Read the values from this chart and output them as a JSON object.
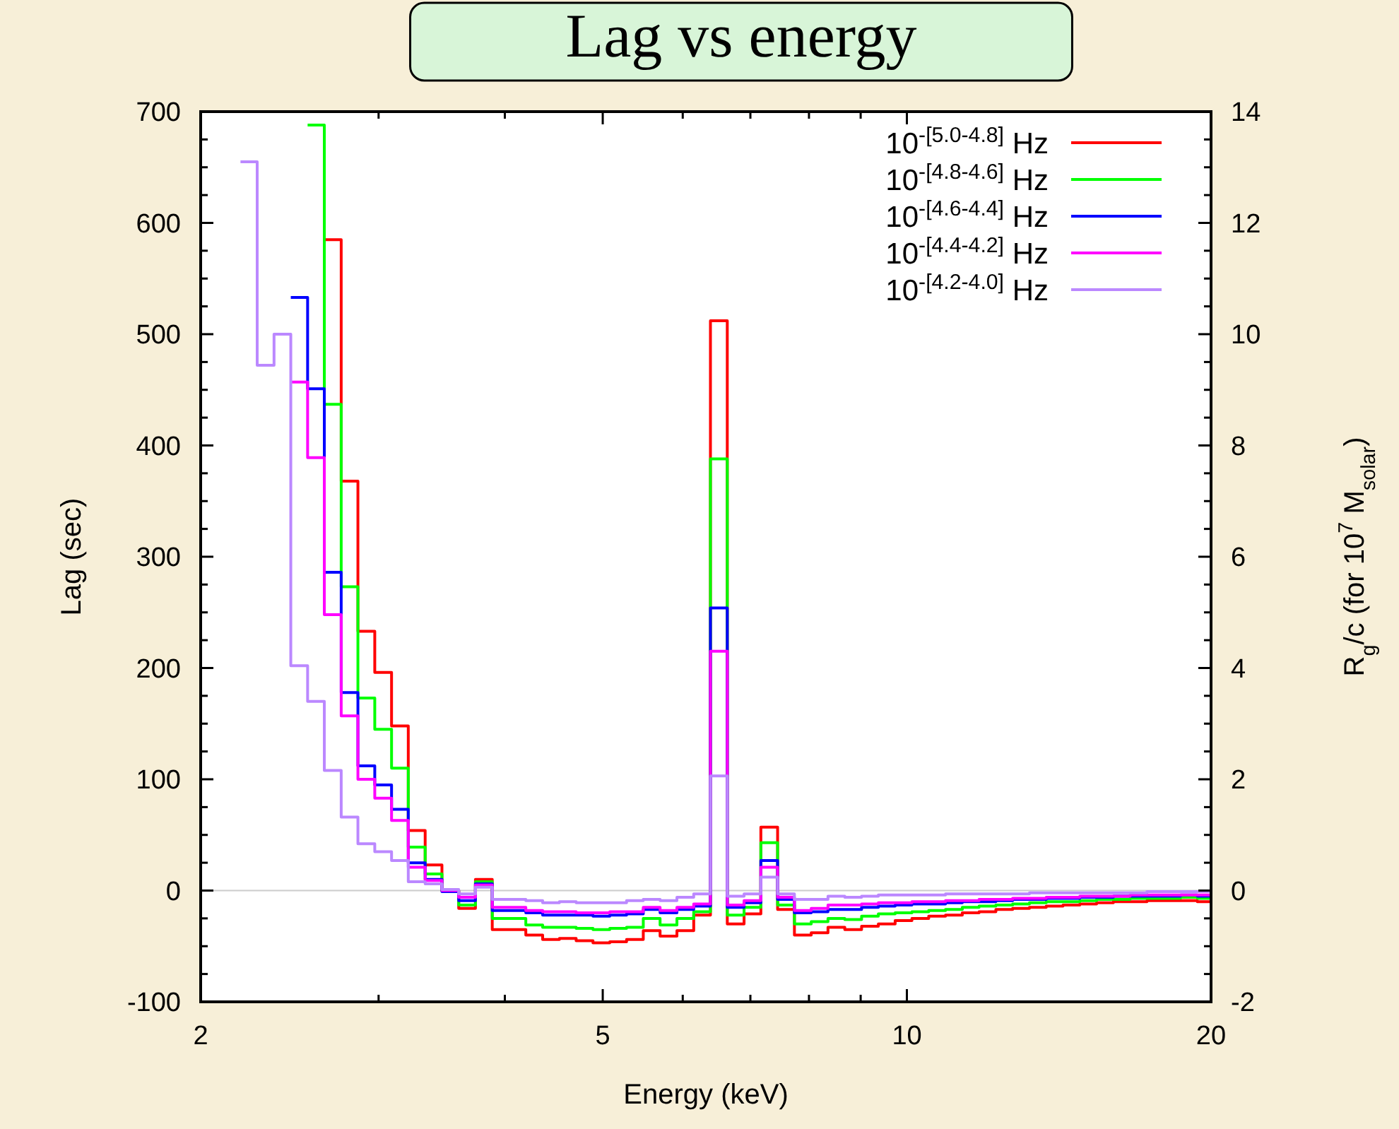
{
  "chart_data": {
    "type": "step",
    "title": "Lag vs energy",
    "xlabel": "Energy (keV)",
    "ylabel": "Lag (sec)",
    "y2label": "R$_{g}$/c (for 10$^{7}$ M$_{solar}$)",
    "log": "x",
    "legend": "top right",
    "xlim": [
      2,
      20
    ],
    "ylim": [
      -100,
      700
    ],
    "y2lim": [
      -2,
      14
    ],
    "xticks": [
      2,
      {
        "value": 3,
        "label": null
      },
      {
        "value": 4,
        "label": null
      },
      5,
      {
        "value": 6,
        "label": null
      },
      {
        "value": 7,
        "label": null
      },
      {
        "value": 8,
        "label": null
      },
      {
        "value": 9,
        "label": null
      },
      10,
      20
    ],
    "yticks": [
      -100,
      {
        "value": -75,
        "label": null
      },
      {
        "value": -50,
        "label": null
      },
      {
        "value": -25,
        "label": null
      },
      0,
      {
        "value": 25,
        "label": null
      },
      {
        "value": 50,
        "label": null
      },
      {
        "value": 75,
        "label": null
      },
      100,
      {
        "value": 125,
        "label": null
      },
      {
        "value": 150,
        "label": null
      },
      {
        "value": 175,
        "label": null
      },
      200,
      {
        "value": 225,
        "label": null
      },
      {
        "value": 250,
        "label": null
      },
      {
        "value": 275,
        "label": null
      },
      300,
      {
        "value": 325,
        "label": null
      },
      {
        "value": 350,
        "label": null
      },
      {
        "value": 375,
        "label": null
      },
      400,
      {
        "value": 425,
        "label": null
      },
      {
        "value": 450,
        "label": null
      },
      {
        "value": 475,
        "label": null
      },
      500,
      {
        "value": 525,
        "label": null
      },
      {
        "value": 550,
        "label": null
      },
      {
        "value": 575,
        "label": null
      },
      600,
      {
        "value": 625,
        "label": null
      },
      {
        "value": 650,
        "label": null
      },
      {
        "value": 675,
        "label": null
      },
      700
    ],
    "y2ticks": [
      -2,
      {
        "value": -1.5,
        "label": null
      },
      {
        "value": -1,
        "label": null
      },
      {
        "value": -0.5,
        "label": null
      },
      0,
      {
        "value": 0.5,
        "label": null
      },
      {
        "value": 1,
        "label": null
      },
      {
        "value": 1.5,
        "label": null
      },
      2,
      {
        "value": 2.5,
        "label": null
      },
      {
        "value": 3,
        "label": null
      },
      {
        "value": 3.5,
        "label": null
      },
      4,
      {
        "value": 4.5,
        "label": null
      },
      {
        "value": 5,
        "label": null
      },
      {
        "value": 5.5,
        "label": null
      },
      6,
      {
        "value": 6.5,
        "label": null
      },
      {
        "value": 7,
        "label": null
      },
      {
        "value": 7.5,
        "label": null
      },
      8,
      {
        "value": 8.5,
        "label": null
      },
      {
        "value": 9,
        "label": null
      },
      {
        "value": 9.5,
        "label": null
      },
      10,
      {
        "value": 10.5,
        "label": null
      },
      {
        "value": 11,
        "label": null
      },
      {
        "value": 11.5,
        "label": null
      },
      12,
      {
        "value": 12.5,
        "label": null
      },
      {
        "value": 13,
        "label": null
      },
      {
        "value": 13.5,
        "label": null
      },
      14
    ],
    "ref_lines": [
      {
        "axis": "y",
        "value": 0,
        "color": "#cccccc"
      }
    ],
    "x": [
      2.19,
      2.275,
      2.364,
      2.456,
      2.552,
      2.651,
      2.755,
      2.862,
      2.974,
      3.09,
      3.21,
      3.336,
      3.466,
      3.601,
      3.741,
      3.887,
      4.039,
      4.196,
      4.36,
      4.53,
      4.706,
      4.89,
      5.081,
      5.279,
      5.484,
      5.698,
      5.921,
      6.152,
      6.391,
      6.641,
      6.9,
      7.169,
      7.448,
      7.739,
      8.041,
      8.354,
      8.68,
      9.019,
      9.37,
      9.736,
      10.115,
      10.51,
      10.92,
      11.346,
      11.788,
      12.248,
      12.725,
      13.222,
      13.737,
      14.273,
      14.83,
      15.408,
      16.009,
      16.633,
      17.282,
      17.956,
      18.656,
      19.384,
      20
    ],
    "series": [
      {
        "name": "10$^{-[5.0-4.8]}$ Hz",
        "color": "#ff0000",
        "values": [
          null,
          null,
          null,
          null,
          null,
          585,
          368,
          233,
          196,
          148,
          54,
          23,
          0,
          -16,
          10,
          -35,
          -35,
          -40,
          -44,
          -43,
          -45,
          -47,
          -46,
          -44,
          -36,
          -41,
          -36,
          -22,
          512,
          -30,
          -21,
          57,
          -17,
          -40,
          -38,
          -33,
          -35,
          -32,
          -30,
          -27,
          -25,
          -23,
          -22,
          -20,
          -19,
          -17,
          -16,
          -15,
          -14,
          -13,
          -12,
          -11,
          -10,
          -10,
          -9,
          -9,
          -9,
          -10,
          -10
        ]
      },
      {
        "name": "10$^{-[4.8-4.6]}$ Hz",
        "color": "#00ff00",
        "values": [
          null,
          null,
          null,
          null,
          688,
          437,
          273,
          173,
          145,
          110,
          39,
          15,
          0,
          -13,
          8,
          -25,
          -25,
          -31,
          -33,
          -33,
          -34,
          -35,
          -34,
          -33,
          -25,
          -31,
          -25,
          -19,
          388,
          -22,
          -15,
          43,
          -13,
          -30,
          -28,
          -25,
          -26,
          -23,
          -21,
          -20,
          -19,
          -18,
          -17,
          -15,
          -14,
          -13,
          -12,
          -11,
          -10,
          -10,
          -9,
          -8,
          -8,
          -7,
          -7,
          -7,
          -6,
          -7,
          -7
        ]
      },
      {
        "name": "10$^{-[4.6-4.4]}$ Hz",
        "color": "#0000ff",
        "values": [
          null,
          null,
          null,
          533,
          451,
          286,
          178,
          112,
          95,
          73,
          25,
          10,
          -1,
          -9,
          6,
          -18,
          -18,
          -20,
          -22,
          -22,
          -22,
          -23,
          -22,
          -21,
          -17,
          -20,
          -17,
          -14,
          254,
          -15,
          -11,
          27,
          -8,
          -20,
          -19,
          -17,
          -17,
          -15,
          -14,
          -13,
          -12,
          -12,
          -11,
          -10,
          -10,
          -9,
          -8,
          -8,
          -7,
          -7,
          -6,
          -6,
          -5,
          -5,
          -5,
          -5,
          -4,
          -5,
          -5
        ]
      },
      {
        "name": "10$^{-[4.4-4.2]}$ Hz",
        "color": "#ff00ff",
        "values": [
          null,
          null,
          null,
          457,
          389,
          248,
          157,
          100,
          83,
          63,
          21,
          9,
          0,
          -6,
          5,
          -15,
          -15,
          -18,
          -19,
          -19,
          -20,
          -20,
          -19,
          -19,
          -15,
          -18,
          -15,
          -12,
          215,
          -13,
          -9,
          21,
          -6,
          -18,
          -16,
          -13,
          -13,
          -12,
          -11,
          -11,
          -10,
          -10,
          -9,
          -9,
          -8,
          -8,
          -7,
          -7,
          -6,
          -6,
          -5,
          -5,
          -5,
          -4,
          -4,
          -4,
          -4,
          -4,
          -4
        ]
      },
      {
        "name": "10$^{-[4.2-4.0]}$ Hz",
        "color": "#bb88ff",
        "values": [
          655,
          472,
          500,
          202,
          170,
          108,
          66,
          42,
          35,
          27,
          8,
          6,
          1,
          -3,
          3,
          -8,
          -8,
          -9,
          -11,
          -10,
          -11,
          -11,
          -11,
          -9,
          -8,
          -9,
          -6,
          -3,
          103,
          -5,
          -3,
          12,
          -3,
          -8,
          -8,
          -5,
          -6,
          -5,
          -4,
          -4,
          -4,
          -4,
          -3,
          -3,
          -3,
          -3,
          -3,
          -2,
          -2,
          -2,
          -2,
          -2,
          -2,
          -2,
          -1,
          -1,
          -1,
          -1,
          -1
        ]
      }
    ]
  }
}
